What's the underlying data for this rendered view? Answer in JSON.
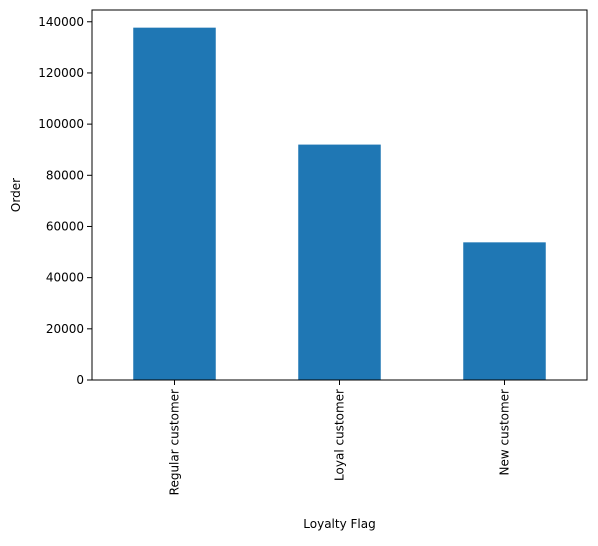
{
  "chart_data": {
    "type": "bar",
    "title": "",
    "xlabel": "Loyalty Flag",
    "ylabel": "Order",
    "categories": [
      "Regular customer",
      "Loyal customer",
      "New customer"
    ],
    "values": [
      137700,
      92000,
      53800
    ],
    "ylim": [
      0,
      144600
    ],
    "yticks": [
      0,
      20000,
      40000,
      60000,
      80000,
      100000,
      120000,
      140000
    ],
    "ytick_labels": [
      "0",
      "20000",
      "40000",
      "60000",
      "80000",
      "100000",
      "120000",
      "140000"
    ],
    "bar_color": "#1f77b4",
    "grid": false,
    "legend": "none"
  }
}
